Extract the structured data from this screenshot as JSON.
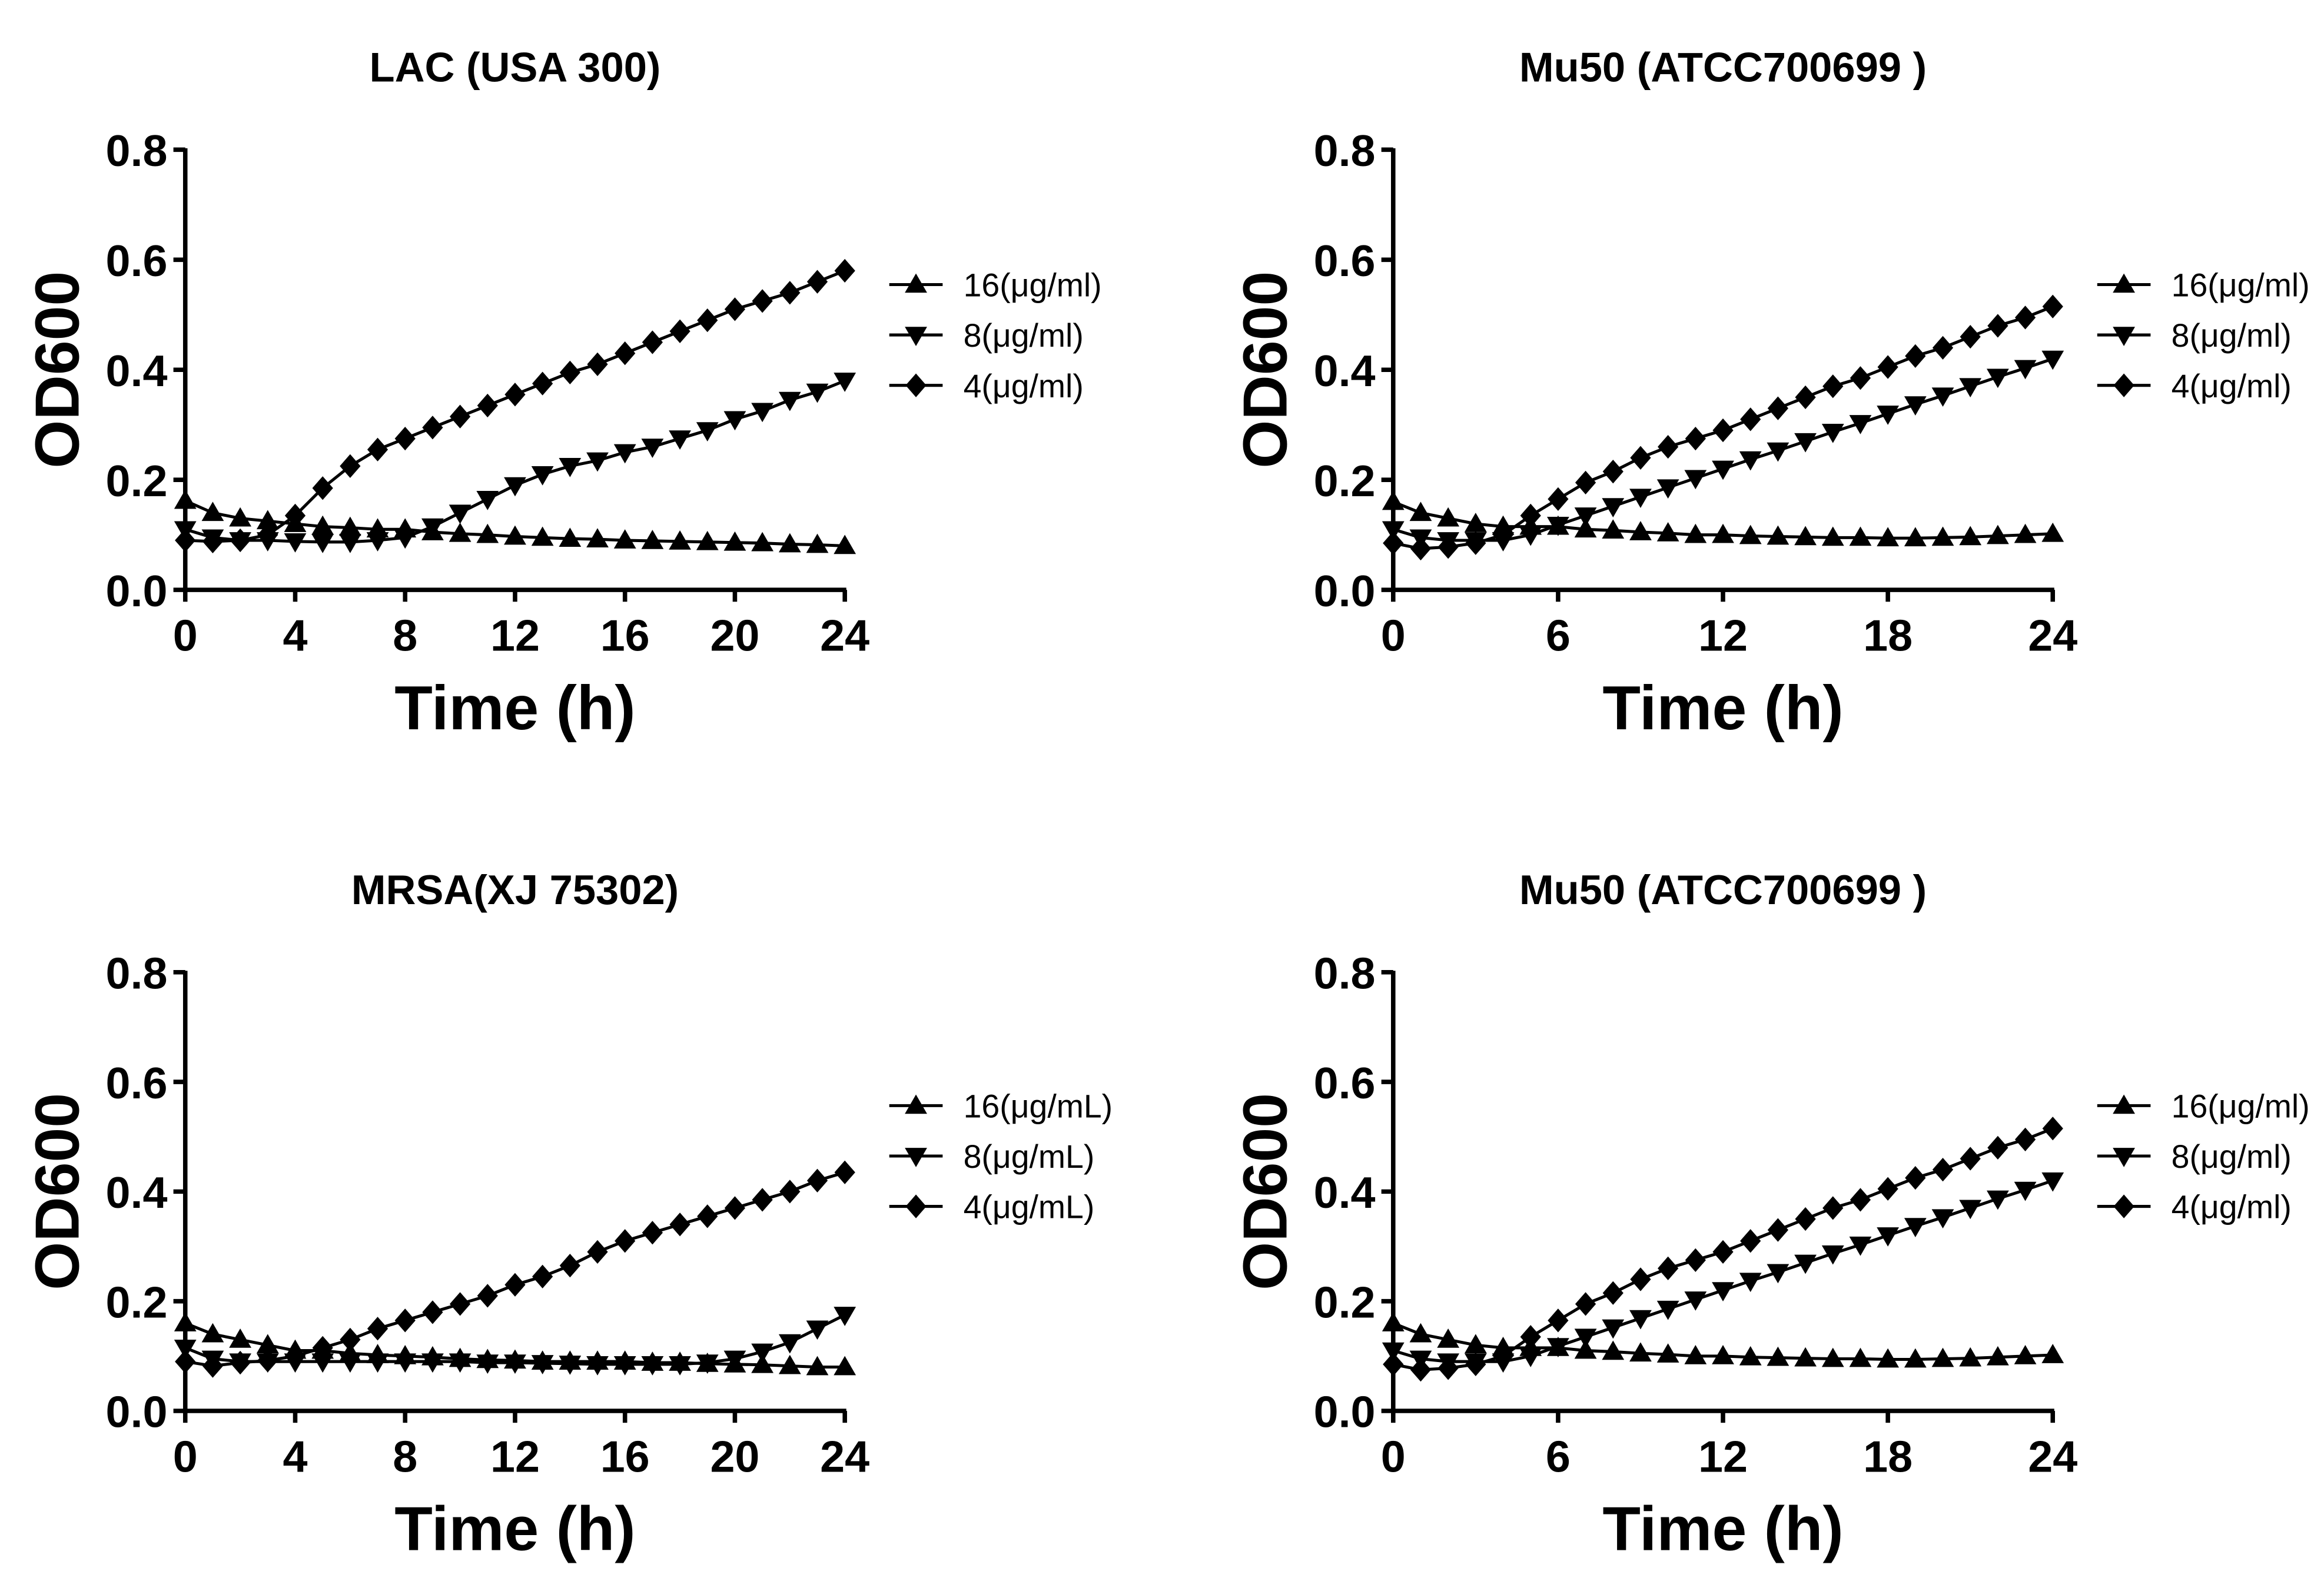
{
  "colors": {
    "ink": "#000000",
    "background": "#ffffff"
  },
  "chart_data": [
    {
      "type": "line",
      "title": "LAC (USA 300)",
      "xlabel": "Time (h)",
      "ylabel": "OD600",
      "xlim": [
        0,
        24
      ],
      "ylim": [
        0,
        0.8
      ],
      "xticks": [
        "0",
        "4",
        "8",
        "12",
        "16",
        "20",
        "24"
      ],
      "yticks": [
        "0.0",
        "0.2",
        "0.4",
        "0.6",
        "0.8"
      ],
      "grid": false,
      "legend": "right",
      "x": [
        0,
        1,
        2,
        3,
        4,
        5,
        6,
        7,
        8,
        9,
        10,
        11,
        12,
        13,
        14,
        15,
        16,
        17,
        18,
        19,
        20,
        21,
        22,
        23,
        24
      ],
      "series": [
        {
          "name": "16(μg/ml)",
          "marker": "triangle-up",
          "values": [
            0.162,
            0.14,
            0.13,
            0.125,
            0.12,
            0.115,
            0.113,
            0.11,
            0.11,
            0.105,
            0.102,
            0.1,
            0.097,
            0.095,
            0.093,
            0.092,
            0.09,
            0.089,
            0.088,
            0.087,
            0.086,
            0.085,
            0.083,
            0.082,
            0.08
          ]
        },
        {
          "name": "8(μg/ml)",
          "marker": "triangle-down",
          "values": [
            0.11,
            0.095,
            0.09,
            0.09,
            0.088,
            0.087,
            0.087,
            0.09,
            0.095,
            0.115,
            0.14,
            0.165,
            0.19,
            0.21,
            0.225,
            0.235,
            0.25,
            0.26,
            0.275,
            0.29,
            0.31,
            0.325,
            0.345,
            0.36,
            0.38
          ]
        },
        {
          "name": "4(μg/ml)",
          "marker": "diamond",
          "values": [
            0.09,
            0.088,
            0.09,
            0.1,
            0.135,
            0.185,
            0.225,
            0.255,
            0.275,
            0.295,
            0.315,
            0.335,
            0.355,
            0.375,
            0.395,
            0.41,
            0.43,
            0.45,
            0.47,
            0.49,
            0.51,
            0.525,
            0.54,
            0.56,
            0.58
          ]
        }
      ]
    },
    {
      "type": "line",
      "title": "Mu50 (ATCC700699 )",
      "xlabel": "Time (h)",
      "ylabel": "OD600",
      "xlim": [
        0,
        24
      ],
      "ylim": [
        0,
        0.8
      ],
      "xticks": [
        "0",
        "6",
        "12",
        "18",
        "24"
      ],
      "yticks": [
        "0.0",
        "0.2",
        "0.4",
        "0.6",
        "0.8"
      ],
      "grid": false,
      "legend": "right",
      "x": [
        0,
        1,
        2,
        3,
        4,
        5,
        6,
        7,
        8,
        9,
        10,
        11,
        12,
        13,
        14,
        15,
        16,
        17,
        18,
        19,
        20,
        21,
        22,
        23,
        24
      ],
      "series": [
        {
          "name": "16(μg/ml)",
          "marker": "triangle-up",
          "values": [
            0.16,
            0.14,
            0.13,
            0.12,
            0.115,
            0.115,
            0.115,
            0.11,
            0.108,
            0.105,
            0.103,
            0.1,
            0.1,
            0.098,
            0.097,
            0.096,
            0.095,
            0.095,
            0.094,
            0.094,
            0.095,
            0.096,
            0.098,
            0.1,
            0.102
          ]
        },
        {
          "name": "8(μg/ml)",
          "marker": "triangle-down",
          "values": [
            0.11,
            0.095,
            0.09,
            0.09,
            0.09,
            0.1,
            0.118,
            0.135,
            0.152,
            0.169,
            0.186,
            0.203,
            0.22,
            0.237,
            0.253,
            0.27,
            0.287,
            0.303,
            0.32,
            0.337,
            0.353,
            0.37,
            0.387,
            0.403,
            0.42
          ]
        },
        {
          "name": "4(μg/ml)",
          "marker": "diamond",
          "values": [
            0.085,
            0.075,
            0.078,
            0.085,
            0.1,
            0.135,
            0.165,
            0.195,
            0.215,
            0.24,
            0.26,
            0.275,
            0.29,
            0.31,
            0.33,
            0.35,
            0.37,
            0.385,
            0.405,
            0.425,
            0.44,
            0.46,
            0.48,
            0.495,
            0.515
          ]
        }
      ]
    },
    {
      "type": "line",
      "title": "MRSA(XJ 75302)",
      "xlabel": "Time (h)",
      "ylabel": "OD600",
      "xlim": [
        0,
        24
      ],
      "ylim": [
        0,
        0.8
      ],
      "xticks": [
        "0",
        "4",
        "8",
        "12",
        "16",
        "20",
        "24"
      ],
      "yticks": [
        "0.0",
        "0.2",
        "0.4",
        "0.6",
        "0.8"
      ],
      "grid": false,
      "legend": "right",
      "x": [
        0,
        1,
        2,
        3,
        4,
        5,
        6,
        7,
        8,
        9,
        10,
        11,
        12,
        13,
        14,
        15,
        16,
        17,
        18,
        19,
        20,
        21,
        22,
        23,
        24
      ],
      "series": [
        {
          "name": "16(μg/mL)",
          "marker": "triangle-up",
          "values": [
            0.16,
            0.14,
            0.13,
            0.12,
            0.11,
            0.11,
            0.105,
            0.102,
            0.1,
            0.098,
            0.095,
            0.093,
            0.092,
            0.09,
            0.09,
            0.09,
            0.09,
            0.088,
            0.088,
            0.086,
            0.085,
            0.084,
            0.082,
            0.08,
            0.08
          ]
        },
        {
          "name": "8(μg/mL)",
          "marker": "triangle-down",
          "values": [
            0.115,
            0.095,
            0.09,
            0.09,
            0.09,
            0.09,
            0.09,
            0.09,
            0.09,
            0.09,
            0.09,
            0.088,
            0.088,
            0.087,
            0.086,
            0.085,
            0.085,
            0.085,
            0.085,
            0.088,
            0.095,
            0.108,
            0.125,
            0.15,
            0.175
          ]
        },
        {
          "name": "4(μg/mL)",
          "marker": "diamond",
          "values": [
            0.09,
            0.082,
            0.088,
            0.092,
            0.1,
            0.115,
            0.13,
            0.15,
            0.165,
            0.18,
            0.195,
            0.21,
            0.23,
            0.245,
            0.265,
            0.29,
            0.31,
            0.325,
            0.34,
            0.355,
            0.37,
            0.385,
            0.4,
            0.42,
            0.435
          ]
        }
      ]
    },
    {
      "type": "line",
      "title": "Mu50 (ATCC700699 )",
      "xlabel": "Time (h)",
      "ylabel": "OD600",
      "xlim": [
        0,
        24
      ],
      "ylim": [
        0,
        0.8
      ],
      "xticks": [
        "0",
        "6",
        "12",
        "18",
        "24"
      ],
      "yticks": [
        "0.0",
        "0.2",
        "0.4",
        "0.6",
        "0.8"
      ],
      "grid": false,
      "legend": "right",
      "x": [
        0,
        1,
        2,
        3,
        4,
        5,
        6,
        7,
        8,
        9,
        10,
        11,
        12,
        13,
        14,
        15,
        16,
        17,
        18,
        19,
        20,
        21,
        22,
        23,
        24
      ],
      "series": [
        {
          "name": "16(μg/ml)",
          "marker": "triangle-up",
          "values": [
            0.16,
            0.14,
            0.13,
            0.12,
            0.115,
            0.115,
            0.115,
            0.11,
            0.108,
            0.105,
            0.103,
            0.1,
            0.1,
            0.098,
            0.097,
            0.096,
            0.095,
            0.095,
            0.094,
            0.094,
            0.095,
            0.096,
            0.098,
            0.1,
            0.102
          ]
        },
        {
          "name": "8(μg/ml)",
          "marker": "triangle-down",
          "values": [
            0.11,
            0.095,
            0.09,
            0.09,
            0.09,
            0.1,
            0.118,
            0.135,
            0.152,
            0.169,
            0.186,
            0.203,
            0.22,
            0.237,
            0.253,
            0.27,
            0.287,
            0.303,
            0.32,
            0.337,
            0.353,
            0.37,
            0.387,
            0.403,
            0.42
          ]
        },
        {
          "name": "4(μg/ml)",
          "marker": "diamond",
          "values": [
            0.085,
            0.075,
            0.078,
            0.085,
            0.1,
            0.135,
            0.165,
            0.195,
            0.215,
            0.24,
            0.26,
            0.275,
            0.29,
            0.31,
            0.33,
            0.35,
            0.37,
            0.385,
            0.405,
            0.425,
            0.44,
            0.46,
            0.48,
            0.495,
            0.515
          ]
        }
      ]
    }
  ]
}
